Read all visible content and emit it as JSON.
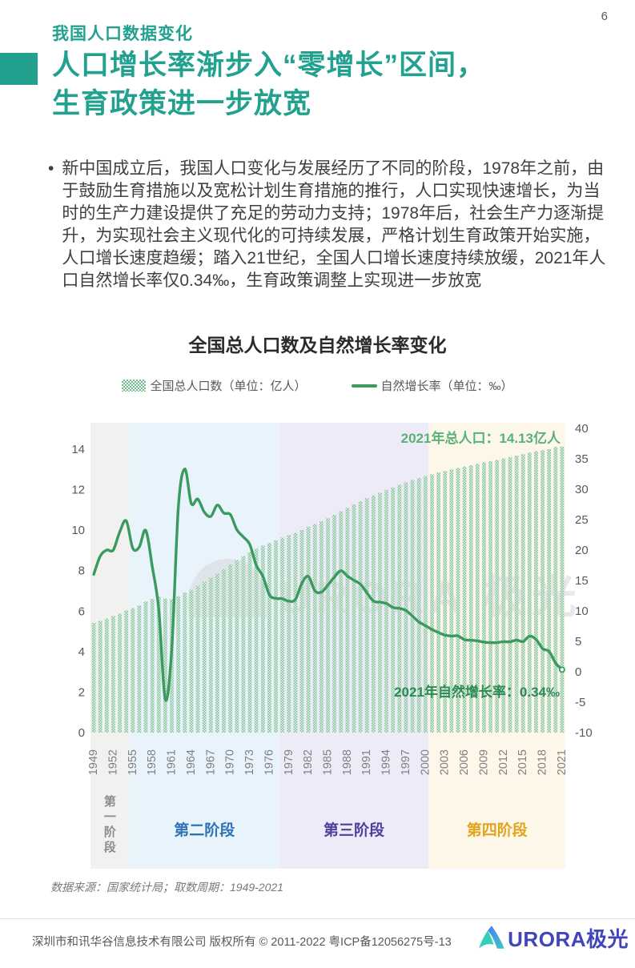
{
  "theme": {
    "accent": "#23a18f",
    "text_dark": "#3f3f3f",
    "text_gray": "#595959",
    "logo_indigo": "#4145bb"
  },
  "page": {
    "number": "6"
  },
  "header": {
    "eyebrow": "我国人口数据变化",
    "title_line1": "人口增长率渐步入“零增长”区间，",
    "title_line2": "生育政策进一步放宽"
  },
  "body": {
    "bullet_text": "新中国成立后，我国人口变化与发展经历了不同的阶段，1978年之前，由于鼓励生育措施以及宽松计划生育措施的推行，人口实现快速增长，为当时的生产力建设提供了充足的劳动力支持；1978年后，社会生产力逐渐提升，为实现社会主义现代化的可持续发展，严格计划生育政策开始实施，人口增长速度趋缓；踏入21世纪，全国人口增长速度持续放缓，2021年人口自然增长率仅0.34‰，生育政策调整上实现进一步放宽"
  },
  "chart": {
    "title": "全国总人口数及自然增长率变化",
    "legend": [
      {
        "label": "全国总人口数（单位：亿人）",
        "swatch": "hatched-bar"
      },
      {
        "label": "自然增长率（单位：‰）",
        "swatch": "line"
      }
    ],
    "annotations": {
      "population": "2021年总人口：14.13亿人",
      "growth": "2021年自然增长率：0.34‰"
    },
    "watermark": "URORA 极光"
  },
  "chart_data": {
    "type": "bar+line",
    "title": "全国总人口数及自然增长率变化",
    "years": [
      1949,
      1950,
      1951,
      1952,
      1953,
      1954,
      1955,
      1956,
      1957,
      1958,
      1959,
      1960,
      1961,
      1962,
      1963,
      1964,
      1965,
      1966,
      1967,
      1968,
      1969,
      1970,
      1971,
      1972,
      1973,
      1974,
      1975,
      1976,
      1977,
      1978,
      1979,
      1980,
      1981,
      1982,
      1983,
      1984,
      1985,
      1986,
      1987,
      1988,
      1989,
      1990,
      1991,
      1992,
      1993,
      1994,
      1995,
      1996,
      1997,
      1998,
      1999,
      2000,
      2001,
      2002,
      2003,
      2004,
      2005,
      2006,
      2007,
      2008,
      2009,
      2010,
      2011,
      2012,
      2013,
      2014,
      2015,
      2016,
      2017,
      2018,
      2019,
      2020,
      2021
    ],
    "series": [
      {
        "name": "全国总人口数（单位：亿人）",
        "type": "bar",
        "axis": "left",
        "values": [
          5.42,
          5.52,
          5.63,
          5.75,
          5.88,
          6.03,
          6.15,
          6.28,
          6.47,
          6.6,
          6.72,
          6.62,
          6.59,
          6.73,
          6.92,
          7.05,
          7.25,
          7.45,
          7.64,
          7.85,
          8.07,
          8.3,
          8.52,
          8.72,
          8.92,
          9.09,
          9.24,
          9.37,
          9.5,
          9.63,
          9.75,
          9.87,
          10.01,
          10.17,
          10.3,
          10.44,
          10.59,
          10.75,
          10.93,
          11.1,
          11.27,
          11.43,
          11.58,
          11.72,
          11.85,
          11.99,
          12.11,
          12.24,
          12.36,
          12.48,
          12.58,
          12.67,
          12.76,
          12.85,
          12.92,
          13.0,
          13.08,
          13.14,
          13.21,
          13.28,
          13.35,
          13.41,
          13.47,
          13.54,
          13.61,
          13.68,
          13.75,
          13.83,
          13.9,
          13.95,
          14.0,
          14.12,
          14.13
        ]
      },
      {
        "name": "自然增长率（单位：‰）",
        "type": "line",
        "axis": "right",
        "values": [
          16.0,
          19.0,
          20.0,
          20.0,
          23.0,
          24.79,
          20.32,
          20.5,
          23.23,
          17.24,
          10.19,
          -4.57,
          3.78,
          26.99,
          33.33,
          27.64,
          28.38,
          26.22,
          25.53,
          27.38,
          26.08,
          25.83,
          23.33,
          22.16,
          20.89,
          17.48,
          15.69,
          12.66,
          12.06,
          12.0,
          11.61,
          11.87,
          14.55,
          15.68,
          13.29,
          13.08,
          14.26,
          15.57,
          16.61,
          15.73,
          15.04,
          14.39,
          12.98,
          11.6,
          11.45,
          11.21,
          10.55,
          10.42,
          10.06,
          9.14,
          8.18,
          7.58,
          6.95,
          6.45,
          6.01,
          5.87,
          5.89,
          5.28,
          5.17,
          5.08,
          4.87,
          4.79,
          4.79,
          4.95,
          4.92,
          5.21,
          4.96,
          5.86,
          5.32,
          3.81,
          3.34,
          1.45,
          0.34
        ]
      }
    ],
    "left_axis": {
      "min": 0,
      "max": 14,
      "step": 2
    },
    "right_axis": {
      "min": -10,
      "max": 40,
      "step": 5
    },
    "x_tick_every": 3,
    "grid": false,
    "legend_position": "top-center",
    "bands": [
      {
        "label": "第一阶段",
        "from": 1949,
        "to": 1955,
        "fill": "#f1f1ef",
        "label_color": "#8c8c8c",
        "vertical": true
      },
      {
        "label": "第二阶段",
        "from": 1955,
        "to": 1978,
        "fill": "#e9f3fb",
        "label_color": "#2e74b5"
      },
      {
        "label": "第三阶段",
        "from": 1978,
        "to": 2001,
        "fill": "#edebf7",
        "label_color": "#503e9d"
      },
      {
        "label": "第四阶段",
        "from": 2001,
        "to": 2021,
        "fill": "#fdf7e9",
        "label_color": "#e2a321"
      }
    ],
    "colors": {
      "bar_light": "#eef7f1",
      "bar_dot": "#79bb90",
      "line": "#3a9a5f",
      "annotation_population": "#56b377",
      "annotation_growth": "#2c8a54",
      "axis_label": "#595959",
      "x_label": "#808080",
      "watermark": "#d8d8dd"
    }
  },
  "source_note": "数据来源：国家统计局；取数周期：1949-2021",
  "footer": {
    "copyright": "深圳市和讯华谷信息技术有限公司 版权所有 © 2011-2022 粤ICP备12056275号-13",
    "logo_text": "URORA极光"
  }
}
